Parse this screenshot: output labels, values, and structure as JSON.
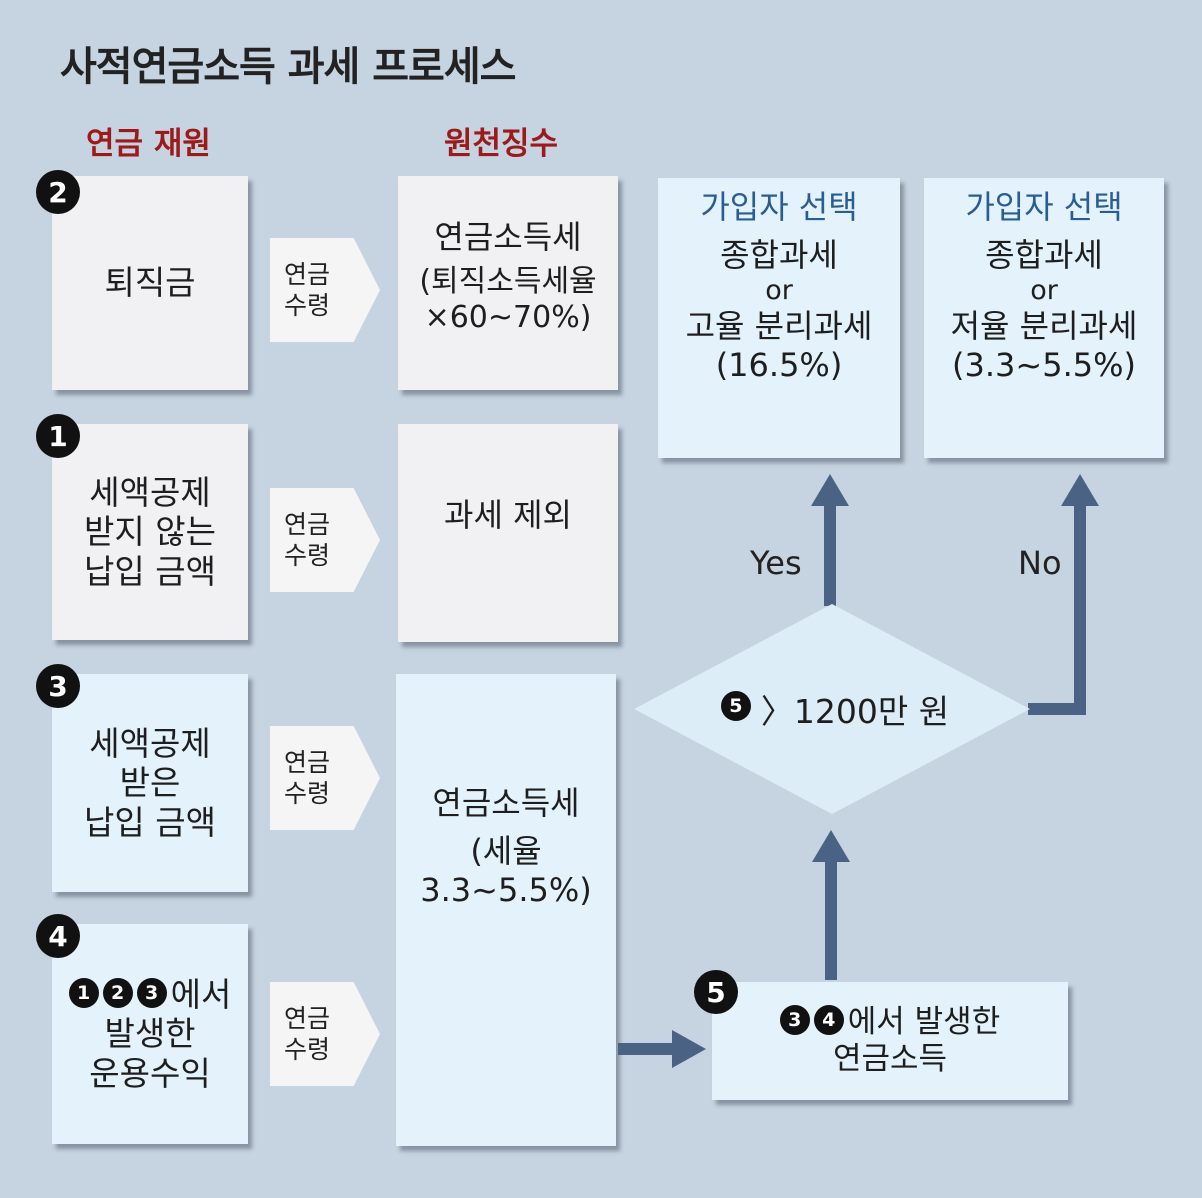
{
  "title": "사적연금소득 과세 프로세스",
  "column_heads": {
    "source": "연금 재원",
    "withholding": "원천징수"
  },
  "sources": [
    {
      "badge": "2",
      "lines": [
        "퇴직금"
      ]
    },
    {
      "badge": "1",
      "lines": [
        "세액공제",
        "받지 않는",
        "납입 금액"
      ]
    },
    {
      "badge": "3",
      "lines": [
        "세액공제",
        "받은",
        "납입 금액"
      ]
    },
    {
      "badge": "4",
      "lead_badges": [
        "1",
        "2",
        "3"
      ],
      "lines": [
        "에서",
        "발생한",
        "운용수익"
      ]
    }
  ],
  "chevron": {
    "line1": "연금",
    "line2": "수령"
  },
  "taxes": [
    {
      "lines": [
        "연금소득세",
        "(퇴직소득세율",
        "×60~70%)"
      ]
    },
    {
      "lines": [
        "과세 제외"
      ]
    },
    {
      "lines": [
        "연금소득세",
        "(세율",
        "3.3~5.5%)"
      ]
    }
  ],
  "choices": [
    {
      "head": "가입자 선택",
      "lines": [
        "종합과세",
        "or",
        "고율 분리과세",
        "(16.5%)"
      ]
    },
    {
      "head": "가입자 선택",
      "lines": [
        "종합과세",
        "or",
        "저율 분리과세",
        "(3.3~5.5%)"
      ]
    }
  ],
  "decision": {
    "badge": "5",
    "text": "〉1200만 원",
    "yes": "Yes",
    "no": "No"
  },
  "pension_income": {
    "badge": "5",
    "lead_badges": [
      "3",
      "4"
    ],
    "line1": "에서 발생한",
    "line2": "연금소득"
  },
  "colors": {
    "background": "#c6d3e0",
    "arrow": "#4a6384",
    "heading": "#9c1a1a",
    "choice_heading": "#2a5d92"
  }
}
